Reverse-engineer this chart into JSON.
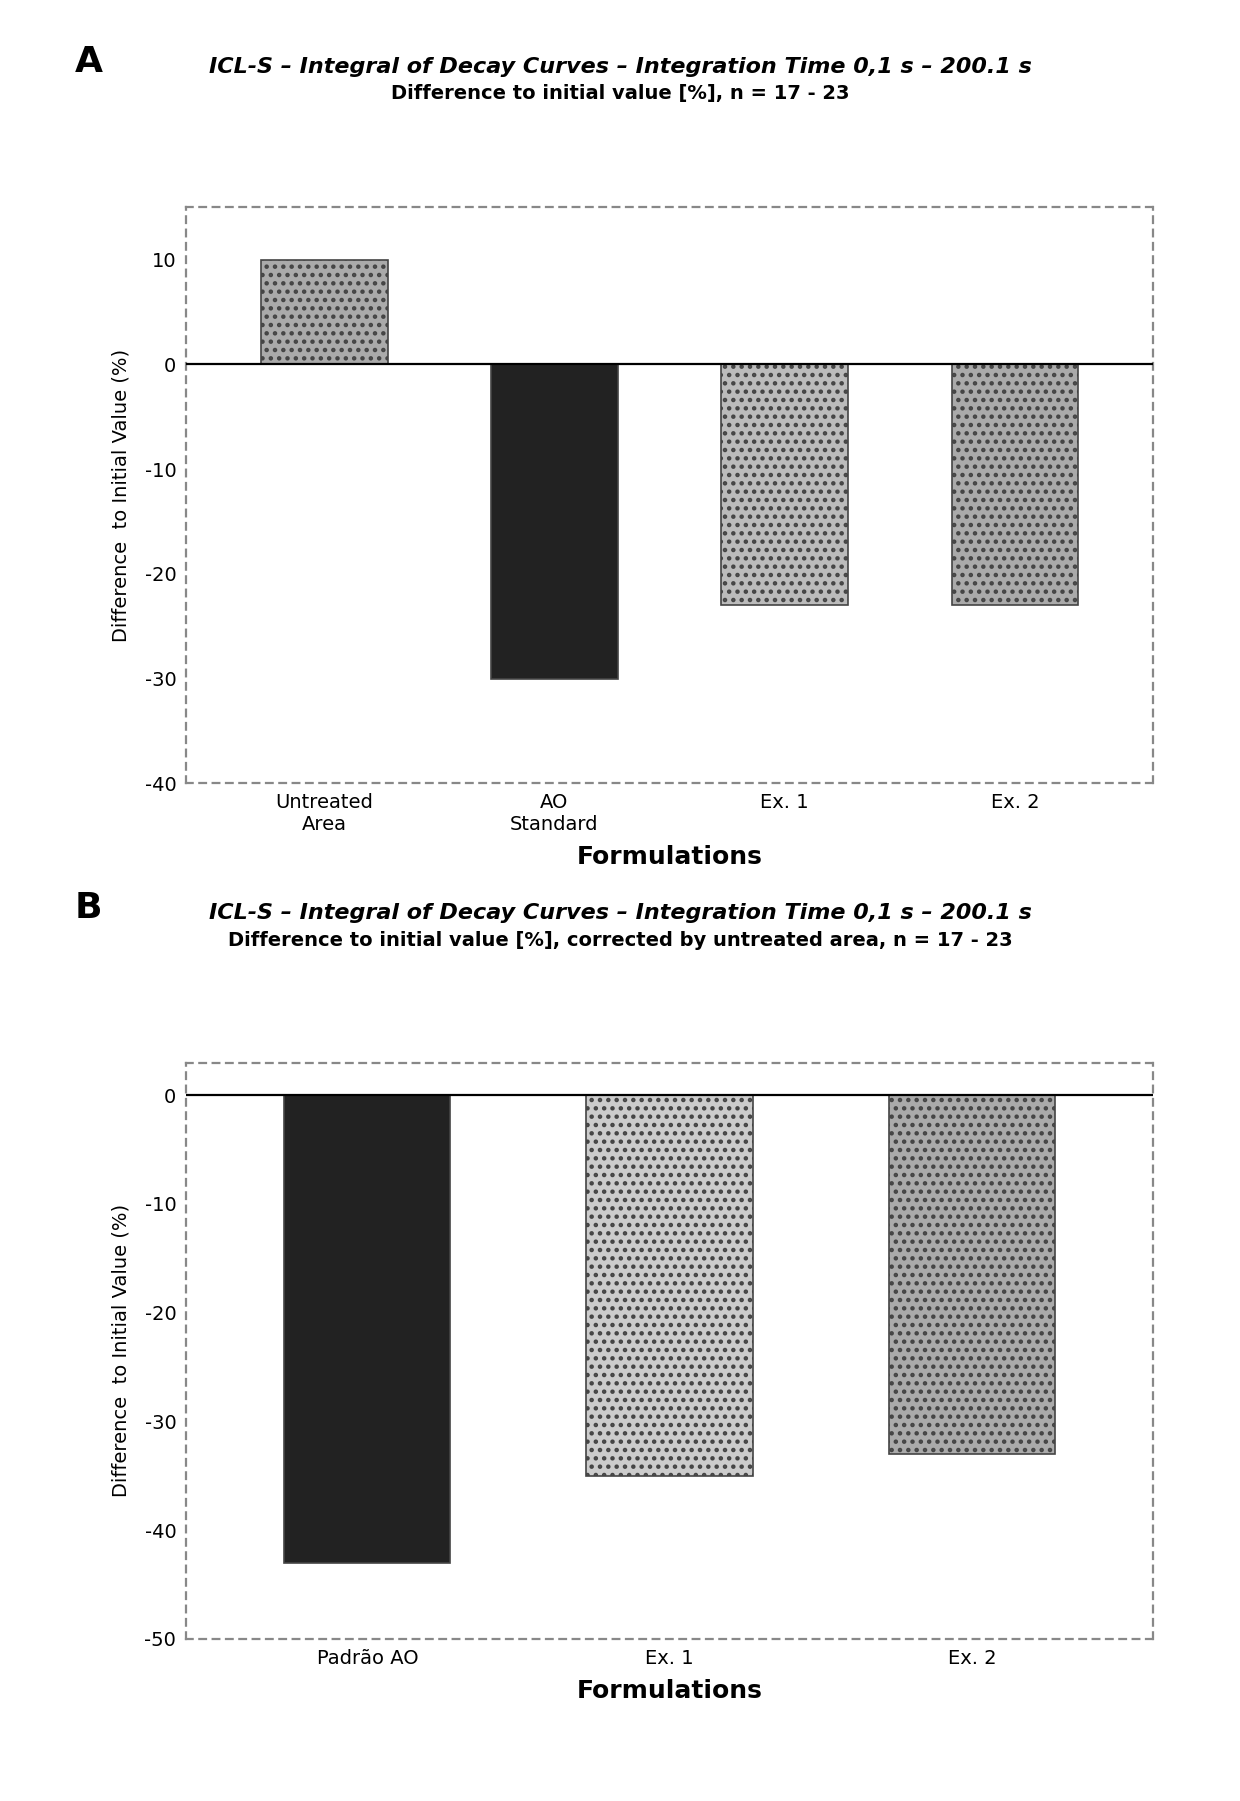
{
  "chart_a": {
    "title": "ICL-S – Integral of Decay Curves – Integration Time 0,1 s – 200.1 s",
    "subtitle": "Difference to initial value [%], n = 17 - 23",
    "categories": [
      "Untreated\nArea",
      "AO\nStandard",
      "Ex. 1",
      "Ex. 2"
    ],
    "values": [
      10,
      -30,
      -23,
      -23
    ],
    "bar_colors": [
      "#aaaaaa",
      "#222222",
      "#bbbbbb",
      "#aaaaaa"
    ],
    "bar_hatches": [
      "....",
      null,
      "....",
      "...."
    ],
    "xlabel": "Formulations",
    "ylabel": "Difference  to Initial Value (%)",
    "ylim": [
      -40,
      15
    ],
    "yticks": [
      -40,
      -30,
      -20,
      -10,
      0,
      10
    ],
    "ytick_labels": [
      "-40",
      "-30",
      "-20",
      "-10",
      "0",
      "10"
    ]
  },
  "chart_b": {
    "title": "ICL-S – Integral of Decay Curves – Integration Time 0,1 s – 200.1 s",
    "subtitle": "Difference to initial value [%], corrected by untreated area, n = 17 - 23",
    "categories": [
      "Padrão AO",
      "Ex. 1",
      "Ex. 2"
    ],
    "values": [
      -43,
      -35,
      -33
    ],
    "bar_colors": [
      "#222222",
      "#cccccc",
      "#aaaaaa"
    ],
    "bar_hatches": [
      null,
      "....",
      "...."
    ],
    "xlabel": "Formulations",
    "ylabel": "Difference  to Initial Value (%)",
    "ylim": [
      -50,
      3
    ],
    "yticks": [
      -50,
      -40,
      -30,
      -20,
      -10,
      0
    ],
    "ytick_labels": [
      "-50",
      "-40",
      "-30",
      "-20",
      "-10",
      "0"
    ]
  },
  "panel_label_a": "A",
  "panel_label_b": "B",
  "background_color": "#ffffff",
  "fig_width": 6.2,
  "fig_height": 9.005
}
